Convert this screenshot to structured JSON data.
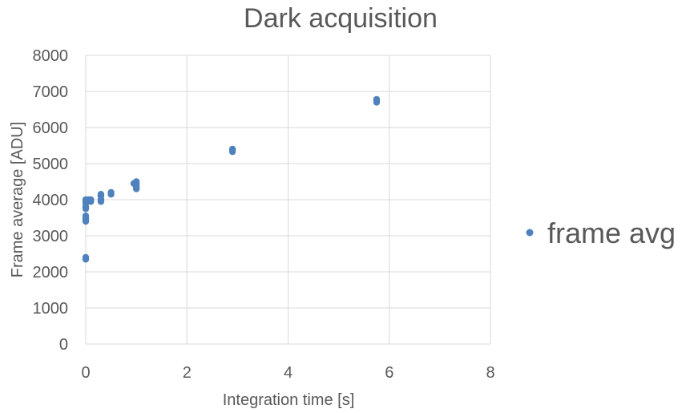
{
  "chart_data": {
    "type": "scatter",
    "title": "Dark acquisition",
    "xlabel": "Integration time [s]",
    "ylabel": "Frame average [ADU]",
    "xlim": [
      0,
      8
    ],
    "ylim": [
      0,
      8000
    ],
    "x_ticks": [
      0,
      2,
      4,
      6,
      8
    ],
    "y_ticks": [
      0,
      1000,
      2000,
      3000,
      4000,
      5000,
      6000,
      7000,
      8000
    ],
    "grid": true,
    "legend_position": "right",
    "series": [
      {
        "name": "frame avg",
        "color": "#4f81bd",
        "points": [
          [
            0.0,
            2350
          ],
          [
            0.0,
            2400
          ],
          [
            0.0,
            3400
          ],
          [
            0.0,
            3450
          ],
          [
            0.0,
            3500
          ],
          [
            0.0,
            3550
          ],
          [
            0.0,
            3750
          ],
          [
            0.0,
            3800
          ],
          [
            0.0,
            3900
          ],
          [
            0.0,
            3950
          ],
          [
            0.0,
            4000
          ],
          [
            0.02,
            3950
          ],
          [
            0.05,
            3980
          ],
          [
            0.05,
            4000
          ],
          [
            0.1,
            3950
          ],
          [
            0.1,
            4000
          ],
          [
            0.3,
            3950
          ],
          [
            0.3,
            4000
          ],
          [
            0.3,
            4100
          ],
          [
            0.3,
            4150
          ],
          [
            0.5,
            4150
          ],
          [
            0.5,
            4200
          ],
          [
            1.0,
            4300
          ],
          [
            1.0,
            4350
          ],
          [
            1.0,
            4400
          ],
          [
            1.0,
            4450
          ],
          [
            1.0,
            4500
          ],
          [
            0.95,
            4450
          ],
          [
            2.9,
            5330
          ],
          [
            2.9,
            5380
          ],
          [
            2.9,
            5400
          ],
          [
            5.75,
            6700
          ],
          [
            5.75,
            6750
          ],
          [
            5.75,
            6780
          ]
        ]
      }
    ]
  }
}
